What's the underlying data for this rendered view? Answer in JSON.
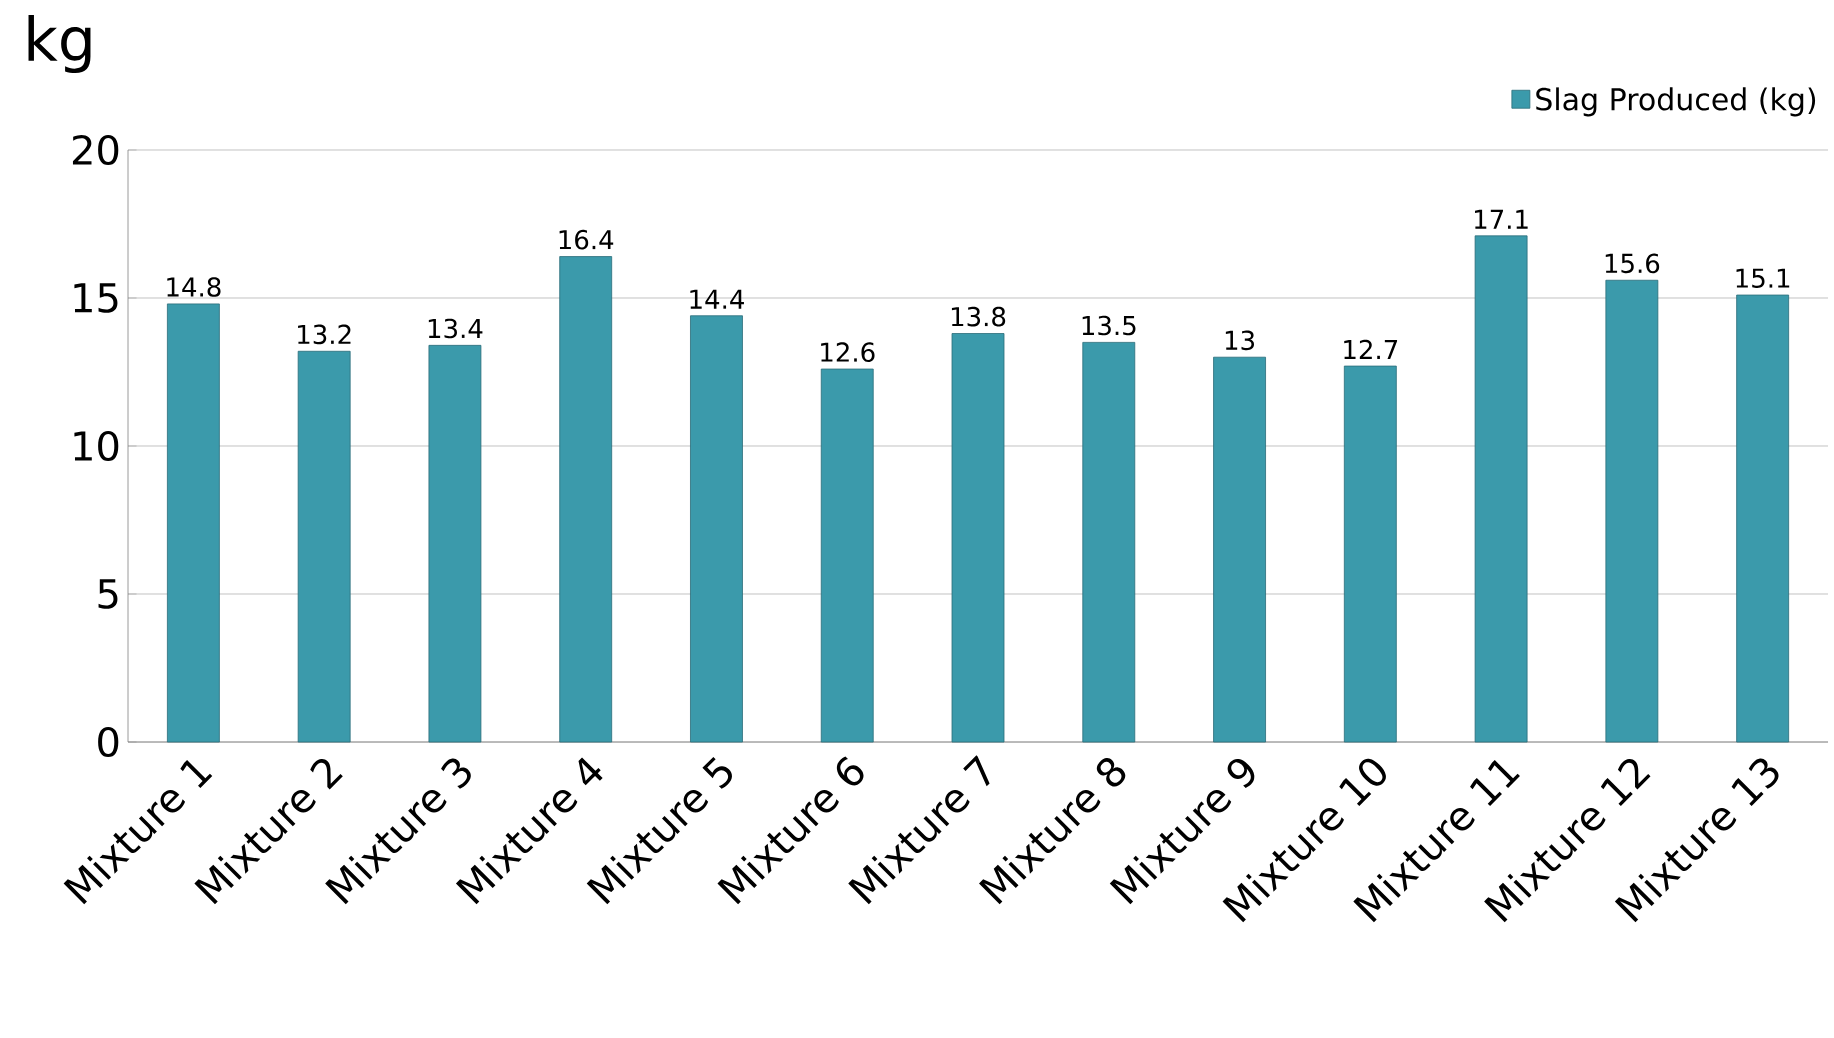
{
  "chart_data": {
    "type": "bar",
    "ylabel": "kg",
    "categories": [
      "Mixture 1",
      "Mixture 2",
      "Mixture 3",
      "Mixture 4",
      "Mixture 5",
      "Mixture 6",
      "Mixture 7",
      "Mixture 8",
      "Mixture 9",
      "Mixture 10",
      "Mixture 11",
      "Mixture 12",
      "Mixture 13"
    ],
    "series": [
      {
        "name": "Slag Produced (kg)",
        "color": "#3b9aab",
        "values": [
          14.8,
          13.2,
          13.4,
          16.4,
          14.4,
          12.6,
          13.8,
          13.5,
          13,
          12.7,
          17.1,
          15.6,
          15.1
        ]
      }
    ],
    "ylim": [
      0,
      20
    ],
    "yticks": [
      0,
      5,
      10,
      15,
      20
    ],
    "grid": "y",
    "legend": "top right",
    "data_labels": true
  }
}
